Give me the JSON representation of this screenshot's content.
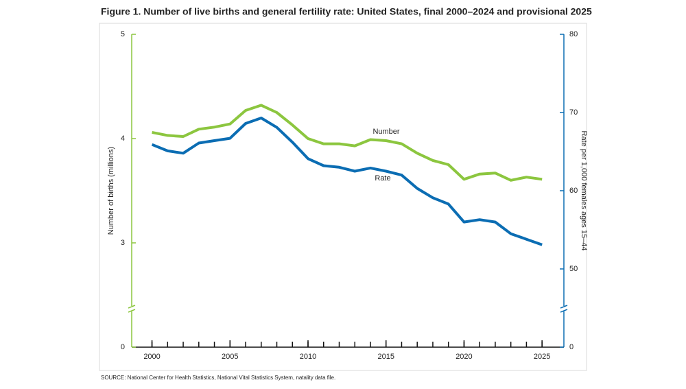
{
  "chart_data": {
    "type": "line",
    "title": "Figure 1. Number of live births and general fertility rate: United States, final 2000–2024 and provisional 2025",
    "y_label": "Number of births (millions)",
    "y2_label": "Rate per 1,000 females ages 15–44",
    "source": "SOURCE: National Center for Health Statistics, National Vital Statistics System, natality data file.",
    "x": [
      2000,
      2001,
      2002,
      2003,
      2004,
      2005,
      2006,
      2007,
      2008,
      2009,
      2010,
      2011,
      2012,
      2013,
      2014,
      2015,
      2016,
      2017,
      2018,
      2019,
      2020,
      2021,
      2022,
      2023,
      2024,
      2025
    ],
    "xlim": [
      1998.7,
      2026.4
    ],
    "xticks": [
      2000,
      2005,
      2010,
      2015,
      2020,
      2025
    ],
    "ylim": [
      0,
      5
    ],
    "yticks": [
      0,
      3,
      4,
      5
    ],
    "y2lim": [
      0,
      80
    ],
    "y2ticks": [
      0,
      50,
      60,
      70,
      80
    ],
    "axis_break": true,
    "series": [
      {
        "name": "Number",
        "color": "#8cc63f",
        "values": [
          4.06,
          4.03,
          4.02,
          4.09,
          4.11,
          4.14,
          4.27,
          4.32,
          4.25,
          4.13,
          4.0,
          3.95,
          3.95,
          3.93,
          3.99,
          3.98,
          3.95,
          3.86,
          3.79,
          3.75,
          3.61,
          3.66,
          3.67,
          3.6,
          3.63,
          3.61
        ]
      },
      {
        "name": "Rate",
        "color": "#0b6db3",
        "axis": "y2",
        "values": [
          65.9,
          65.1,
          64.8,
          66.1,
          66.4,
          66.7,
          68.6,
          69.3,
          68.1,
          66.2,
          64.1,
          63.2,
          63.0,
          62.5,
          62.9,
          62.5,
          62.0,
          60.3,
          59.1,
          58.3,
          56.0,
          56.3,
          56.0,
          54.5,
          53.8,
          53.1
        ]
      }
    ]
  }
}
